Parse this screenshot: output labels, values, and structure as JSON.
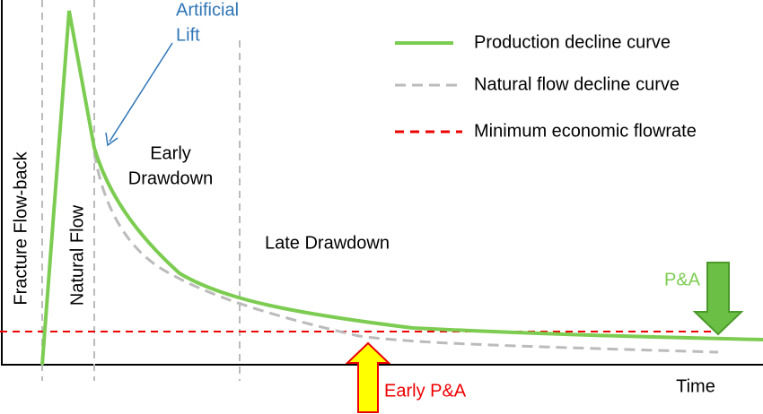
{
  "legend": [
    "Production decline curve",
    "Natural flow decline curve",
    "Minimum economic flowrate"
  ],
  "regions": [
    "Fracture Flow-back",
    "Natural Flow",
    "Early",
    "Drawdown",
    "Late Drawdown"
  ],
  "annotations": {
    "artificial_lift": [
      "Artificial",
      "Lift"
    ],
    "pa": "P&A",
    "early_pa": "Early P&A"
  },
  "x_axis_label": "Time"
}
